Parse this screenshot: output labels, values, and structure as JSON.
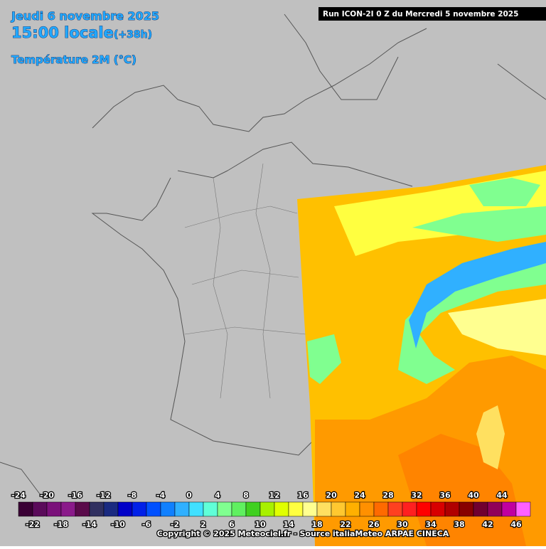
{
  "header": {
    "date": "Jeudi 6 novembre 2025",
    "time": "15:00 locale",
    "lead": "(+38h)",
    "variable": "Température 2M (°C)"
  },
  "run": "Run ICON-2I 0 Z du Mercredi 5 novembre 2025",
  "legend": {
    "values": [
      -24,
      -22,
      -20,
      -18,
      -16,
      -14,
      -12,
      -10,
      -8,
      -6,
      -4,
      -2,
      0,
      2,
      4,
      6,
      8,
      10,
      12,
      14,
      16,
      18,
      20,
      22,
      24,
      26,
      28,
      30,
      32,
      34,
      36,
      38,
      40,
      42,
      44,
      46
    ],
    "colors": [
      "#3a0035",
      "#5a0a5a",
      "#7a107a",
      "#8a1a8a",
      "#5a0a4a",
      "#303060",
      "#1a2a80",
      "#0000c8",
      "#0020e8",
      "#0050ff",
      "#1080ff",
      "#30b0ff",
      "#40e0ff",
      "#60ffd8",
      "#80ff90",
      "#60f060",
      "#40d020",
      "#a8f000",
      "#e0ff00",
      "#ffff40",
      "#ffff90",
      "#ffe060",
      "#ffc830",
      "#ffb000",
      "#ff9000",
      "#ff6a00",
      "#ff4020",
      "#ff2020",
      "#ff0000",
      "#d80000",
      "#b00000",
      "#880000",
      "#700030",
      "#90005a",
      "#c000a0",
      "#ff60ff"
    ]
  },
  "copyright": "Copyright © 2025 Meteociel.fr - Source italiaMeteo ARPAE CINECA"
}
